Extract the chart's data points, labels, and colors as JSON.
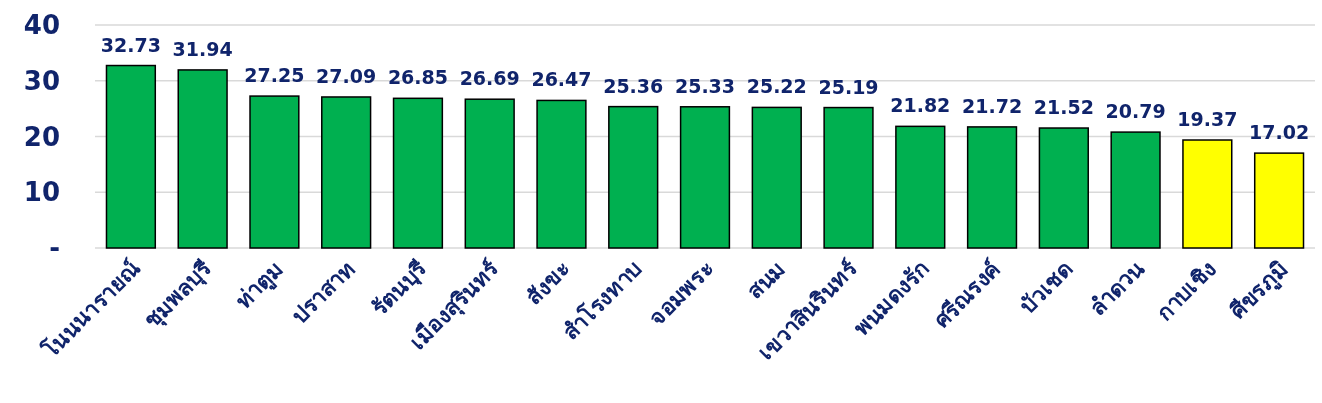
{
  "chart_data": {
    "type": "bar",
    "categories": [
      "โนนนารายณ์",
      "ชุมพลบุรี",
      "ท่าตูม",
      "ปราสาท",
      "รัตนบุรี",
      "เมืองสุรินทร์",
      "สังขะ",
      "สำโรงทาบ",
      "จอมพระ",
      "สนม",
      "เขวาสินรินทร์",
      "พนมดงรัก",
      "ศรีณรงค์",
      "บัวเชด",
      "ลำดวน",
      "กาบเชิง",
      "ศีขรภูมิ"
    ],
    "values": [
      32.73,
      31.94,
      27.25,
      27.09,
      26.85,
      26.69,
      26.47,
      25.36,
      25.33,
      25.22,
      25.19,
      21.82,
      21.72,
      21.52,
      20.79,
      19.37,
      17.02
    ],
    "colors": [
      "#00b050",
      "#00b050",
      "#00b050",
      "#00b050",
      "#00b050",
      "#00b050",
      "#00b050",
      "#00b050",
      "#00b050",
      "#00b050",
      "#00b050",
      "#00b050",
      "#00b050",
      "#00b050",
      "#00b050",
      "#ffff00",
      "#ffff00"
    ],
    "ylim": [
      0,
      40
    ],
    "yticks": [
      {
        "value": 0,
        "label": "-"
      },
      10,
      20,
      30,
      40
    ],
    "grid": "y",
    "data_labels": true
  }
}
